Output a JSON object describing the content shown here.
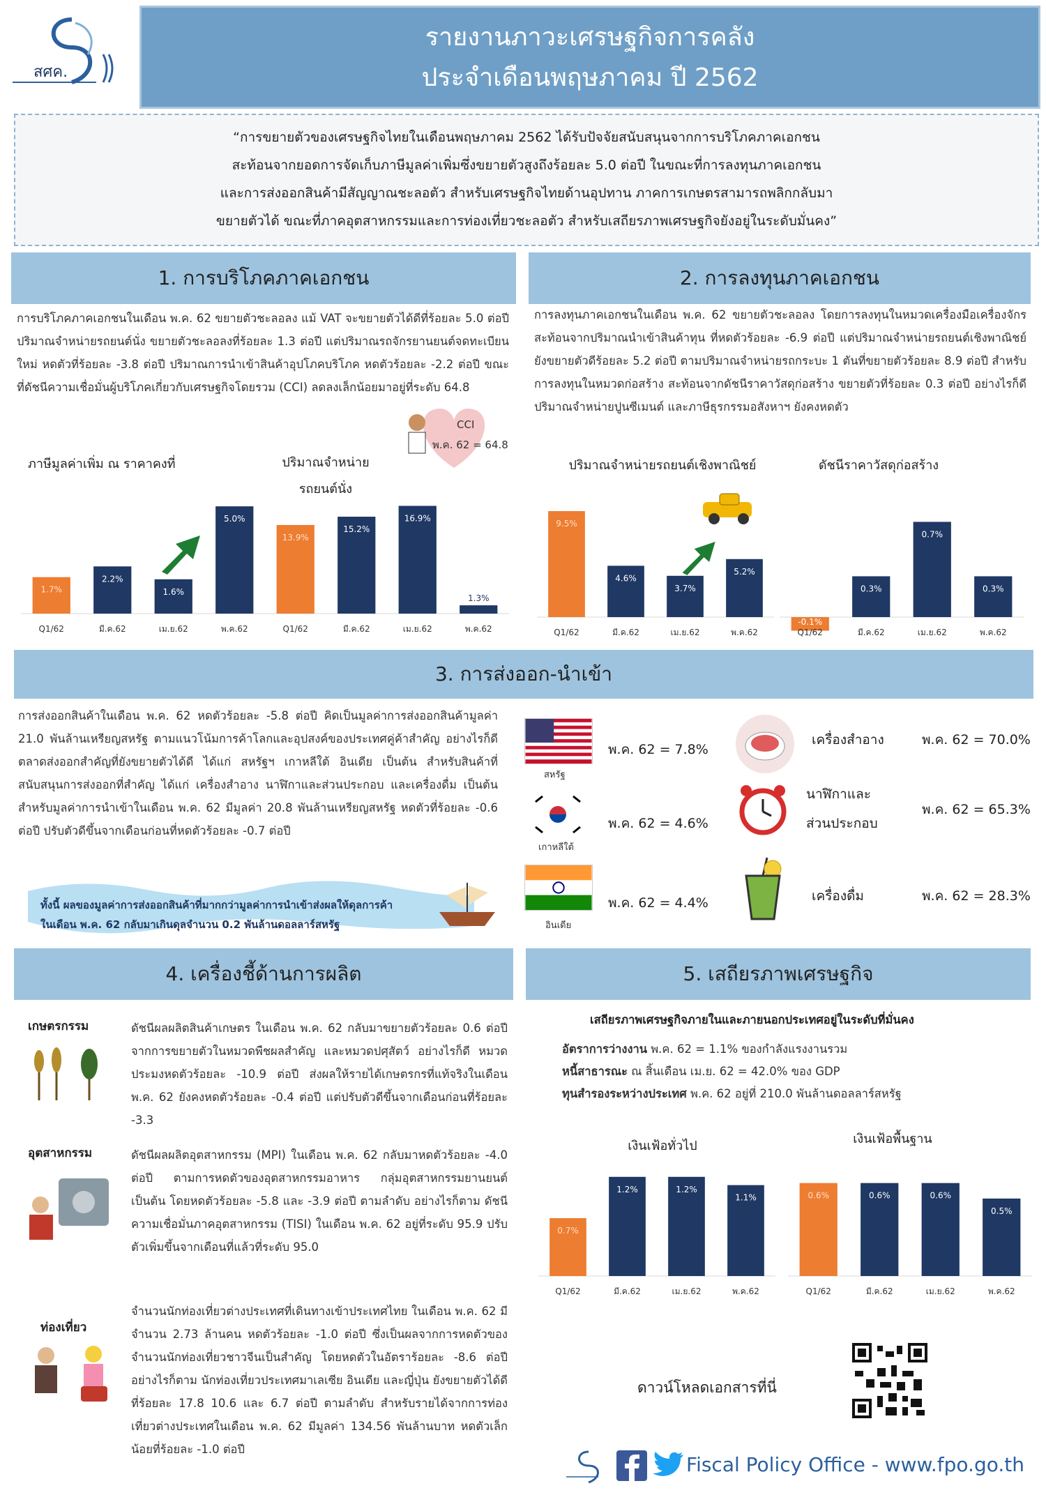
{
  "logo": {
    "text": "สศค."
  },
  "header": {
    "title_line1": "รายงานภาวะเศรษฐกิจการคลัง",
    "title_line2": "ประจำเดือนพฤษภาคม ปี 2562"
  },
  "summary": {
    "lines": [
      "“การขยายตัวของเศรษฐกิจไทยในเดือนพฤษภาคม 2562 ได้รับปัจจัยสนับสนุนจากการบริโภคภาคเอกชน",
      "สะท้อนจากยอดการจัดเก็บภาษีมูลค่าเพิ่มซึ่งขยายตัวสูงถึงร้อยละ 5.0 ต่อปี ในขณะที่การลงทุนภาคเอกชน",
      "และการส่งออกสินค้ามีสัญญาณชะลอตัว สำหรับเศรษฐกิจไทยด้านอุปทาน ภาคการเกษตรสามารถพลิกกลับมา",
      "ขยายตัวได้ ขณะที่ภาคอุตสาหกรรมและการท่องเที่ยวชะลอตัว สำหรับเสถียรภาพเศรษฐกิจยังอยู่ในระดับมั่นคง”"
    ]
  },
  "section1": {
    "heading": "1. การบริโภคภาคเอกชน",
    "text": "การบริโภคภาคเอกชนในเดือน พ.ค. 62 ขยายตัวชะลอลง แม้ VAT จะขยายตัวได้ดีที่ร้อยละ 5.0 ต่อปี ปริมาณจำหน่ายรถยนต์นั่ง ขยายตัวชะลอลงที่ร้อยละ 1.3 ต่อปี แต่ปริมาณรถจักรยานยนต์จดทะเบียนใหม่ หดตัวที่ร้อยละ -3.8 ต่อปี ปริมาณการนำเข้าสินค้าอุปโภคบริโภค หดตัวร้อยละ -2.2 ต่อปี ขณะที่ดัชนีความเชื่อมั่นผู้บริโภคเกี่ยวกับเศรษฐกิจโดยรวม (CCI) ลดลงเล็กน้อยมาอยู่ที่ระดับ 64.8",
    "cci_label": "CCI",
    "cci_value": "พ.ค. 62 = 64.8",
    "chart_left_title": "ภาษีมูลค่าเพิ่ม ณ ราคาคงที่",
    "chart_right_title_1": "ปริมาณจำหน่าย",
    "chart_right_title_2": "รถยนต์นั่ง"
  },
  "section2": {
    "heading": "2. การลงทุนภาคเอกชน",
    "text": "การลงทุนภาคเอกชนในเดือน พ.ค. 62 ขยายตัวชะลอลง โดยการลงทุนในหมวดเครื่องมือเครื่องจักร สะท้อนจากปริมาณนำเข้าสินค้าทุน ที่หดตัวร้อยละ -6.9 ต่อปี แต่ปริมาณจำหน่ายรถยนต์เชิงพาณิชย์ ยังขยายตัวดีร้อยละ 5.2 ต่อปี ตามปริมาณจำหน่ายรถกระบะ 1 ตันที่ขยายตัวร้อยละ 8.9 ต่อปี สำหรับการลงทุนในหมวดก่อสร้าง สะท้อนจากดัชนีราคาวัสดุก่อสร้าง ขยายตัวที่ร้อยละ 0.3 ต่อปี อย่างไรก็ดี ปริมาณจำหน่ายปูนซีเมนต์ และภาษีธุรกรรมอสังหาฯ ยังคงหดตัว",
    "chart_left_title": "ปริมาณจำหน่ายรถยนต์เชิงพาณิชย์",
    "chart_right_title": "ดัชนีราคาวัสดุก่อสร้าง"
  },
  "section3": {
    "heading": "3. การส่งออก-นำเข้า",
    "text": "การส่งออกสินค้าในเดือน พ.ค. 62 หดตัวร้อยละ -5.8 ต่อปี คิดเป็นมูลค่าการส่งออกสินค้ามูลค่า 21.0 พันล้านเหรียญสหรัฐ ตามแนวโน้มการค้าโลกและอุปสงค์ของประเทศคู่ค้าสำคัญ อย่างไรก็ดี ตลาดส่งออกสำคัญที่ยังขยายตัวได้ดี ได้แก่ สหรัฐฯ เกาหลีใต้ อินเดีย เป็นต้น สำหรับสินค้าที่สนับสนุนการส่งออกที่สำคัญ ได้แก่ เครื่องสำอาง นาฬิกาและส่วนประกอบ และเครื่องดื่ม เป็นต้น สำหรับมูลค่าการนำเข้าในเดือน พ.ค. 62 มีมูลค่า 20.8 พันล้านเหรียญสหรัฐ หดตัวที่ร้อยละ -0.6 ต่อปี ปรับตัวดีขึ้นจากเดือนก่อนที่หดตัวร้อยละ -0.7 ต่อปี",
    "banner_line1": "ทั้งนี้ ผลของมูลค่าการส่งออกสินค้าที่มากกว่ามูลค่าการนำเข้าส่งผลให้ดุลการค้า",
    "banner_line2": "ในเดือน พ.ค. 62 กลับมาเกินดุลจำนวน 0.2 พันล้านดอลลาร์สหรัฐ",
    "countries": [
      {
        "name": "สหรัฐ",
        "value": "พ.ค. 62 = 7.8%"
      },
      {
        "name": "เกาหลีใต้",
        "value": "พ.ค. 62 = 4.6%"
      },
      {
        "name": "อินเดีย",
        "value": "พ.ค. 62 = 4.4%"
      }
    ],
    "products": [
      {
        "name": "เครื่องสำอาง",
        "value": "พ.ค. 62 = 70.0%"
      },
      {
        "name_1": "นาฬิกาและ",
        "name_2": "ส่วนประกอบ",
        "value": "พ.ค. 62 = 65.3%"
      },
      {
        "name": "เครื่องดื่ม",
        "value": "พ.ค. 62 = 28.3%"
      }
    ]
  },
  "section4": {
    "heading": "4. เครื่องชี้ด้านการผลิต",
    "agri_label": "เกษตรกรรม",
    "agri_text": "ดัชนีผลผลิตสินค้าเกษตร ในเดือน พ.ค. 62 กลับมาขยายตัวร้อยละ 0.6 ต่อปี จากการขยายตัวในหมวดพืชผลสำคัญ และหมวดปศุสัตว์ อย่างไรก็ดี หมวดประมงหดตัวร้อยละ -10.9 ต่อปี ส่งผลให้รายได้เกษตรกรที่แท้จริงในเดือน พ.ค. 62 ยังคงหดตัวร้อยละ -0.4 ต่อปี แต่ปรับตัวดีขึ้นจากเดือนก่อนที่ร้อยละ -3.3",
    "ind_label": "อุตสาหกรรม",
    "ind_text": "ดัชนีผลผลิตอุตสาหกรรม (MPI) ในเดือน พ.ค. 62 กลับมาหดตัวร้อยละ -4.0 ต่อปี ตามการหดตัวของอุตสาหกรรมอาหาร กลุ่มอุตสาหกรรมยานยนต์ เป็นต้น โดยหดตัวร้อยละ -5.8 และ -3.9 ต่อปี ตามลำดับ อย่างไรก็ตาม ดัชนีความเชื่อมั่นภาคอุตสาหกรรม (TISI) ในเดือน พ.ค. 62 อยู่ที่ระดับ 95.9 ปรับตัวเพิ่มขึ้นจากเดือนที่แล้วที่ระดับ 95.0",
    "tour_label": "ท่องเที่ยว",
    "tour_text": "จำนวนนักท่องเที่ยวต่างประเทศที่เดินทางเข้าประเทศไทย ในเดือน พ.ค. 62 มีจำนวน 2.73 ล้านคน หดตัวร้อยละ -1.0 ต่อปี ซึ่งเป็นผลจากการหดตัวของจำนวนนักท่องเที่ยวชาวจีนเป็นสำคัญ โดยหดตัวในอัตราร้อยละ -8.6 ต่อปี อย่างไรก็ตาม นักท่องเที่ยวประเทศมาเลเซีย อินเดีย และญี่ปุ่น ยังขยายตัวได้ดี ที่ร้อยละ 17.8 10.6 และ 6.7 ต่อปี ตามลำดับ สำหรับรายได้จากการท่องเที่ยวต่างประเทศในเดือน พ.ค. 62 มีมูลค่า 134.56 พันล้านบาท หดตัวเล็กน้อยที่ร้อยละ -1.0 ต่อปี"
  },
  "section5": {
    "heading": "5. เสถียรภาพเศรษฐกิจ",
    "intro": "เสถียรภาพเศรษฐกิจภายในและภายนอกประเทศอยู่ในระดับที่มั่นคง",
    "line1_bold": "อัตราการว่างงาน",
    "line1_rest": " พ.ค. 62 = 1.1% ของกำลังแรงงานรวม",
    "line2_bold": "หนี้สาธารณะ",
    "line2_rest": " ณ สิ้นเดือน เม.ย. 62 = 42.0% ของ GDP",
    "line3_bold": "ทุนสำรองระหว่างประเทศ",
    "line3_rest": " พ.ค. 62 อยู่ที่ 210.0 พันล้านดอลลาร์สหรัฐ",
    "chart_left_title": "เงินเฟ้อทั่วไป",
    "chart_right_title": "เงินเฟ้อพื้นฐาน",
    "download_label": "ดาวน์โหลดเอกสารที่นี่"
  },
  "footer": {
    "text": "Fiscal Policy Office - www.fpo.go.th"
  },
  "colors": {
    "navy": "#1f3864",
    "orange": "#ed7d31",
    "header_blue": "#9ec3de",
    "title_blue": "#6f9fc6"
  },
  "chart_data": [
    {
      "type": "bar",
      "title": "ภาษีมูลค่าเพิ่ม ณ ราคาคงที่",
      "categories": [
        "Q1/62",
        "มี.ค.62",
        "เม.ย.62",
        "พ.ค.62"
      ],
      "values": [
        1.7,
        2.2,
        1.6,
        5.0
      ],
      "labels": [
        "1.7%",
        "2.2%",
        "1.6%",
        "5.0%"
      ]
    },
    {
      "type": "bar",
      "title": "ปริมาณจำหน่ายรถยนต์นั่ง",
      "categories": [
        "Q1/62",
        "มี.ค.62",
        "เม.ย.62",
        "พ.ค.62"
      ],
      "values": [
        13.9,
        15.2,
        16.9,
        1.3
      ],
      "labels": [
        "13.9%",
        "15.2%",
        "16.9%",
        "1.3%"
      ]
    },
    {
      "type": "bar",
      "title": "ปริมาณจำหน่ายรถยนต์เชิงพาณิชย์",
      "categories": [
        "Q1/62",
        "มี.ค.62",
        "เม.ย.62",
        "พ.ค.62"
      ],
      "values": [
        9.5,
        4.6,
        3.7,
        5.2
      ],
      "labels": [
        "9.5%",
        "4.6%",
        "3.7%",
        "5.2%"
      ]
    },
    {
      "type": "bar",
      "title": "ดัชนีราคาวัสดุก่อสร้าง",
      "categories": [
        "Q1/62",
        "มี.ค.62",
        "เม.ย.62",
        "พ.ค.62"
      ],
      "values": [
        -0.1,
        0.3,
        0.7,
        0.3
      ],
      "labels": [
        "-0.1%",
        "0.3%",
        "0.7%",
        "0.3%"
      ]
    },
    {
      "type": "bar",
      "title": "เงินเฟ้อทั่วไป",
      "categories": [
        "Q1/62",
        "มี.ค.62",
        "เม.ย.62",
        "พ.ค.62"
      ],
      "values": [
        0.7,
        1.2,
        1.2,
        1.1
      ],
      "labels": [
        "0.7%",
        "1.2%",
        "1.2%",
        "1.1%"
      ]
    },
    {
      "type": "bar",
      "title": "เงินเฟ้อพื้นฐาน",
      "categories": [
        "Q1/62",
        "มี.ค.62",
        "เม.ย.62",
        "พ.ค.62"
      ],
      "values": [
        0.6,
        0.6,
        0.6,
        0.5
      ],
      "labels": [
        "0.6%",
        "0.6%",
        "0.6%",
        "0.5%"
      ]
    }
  ]
}
